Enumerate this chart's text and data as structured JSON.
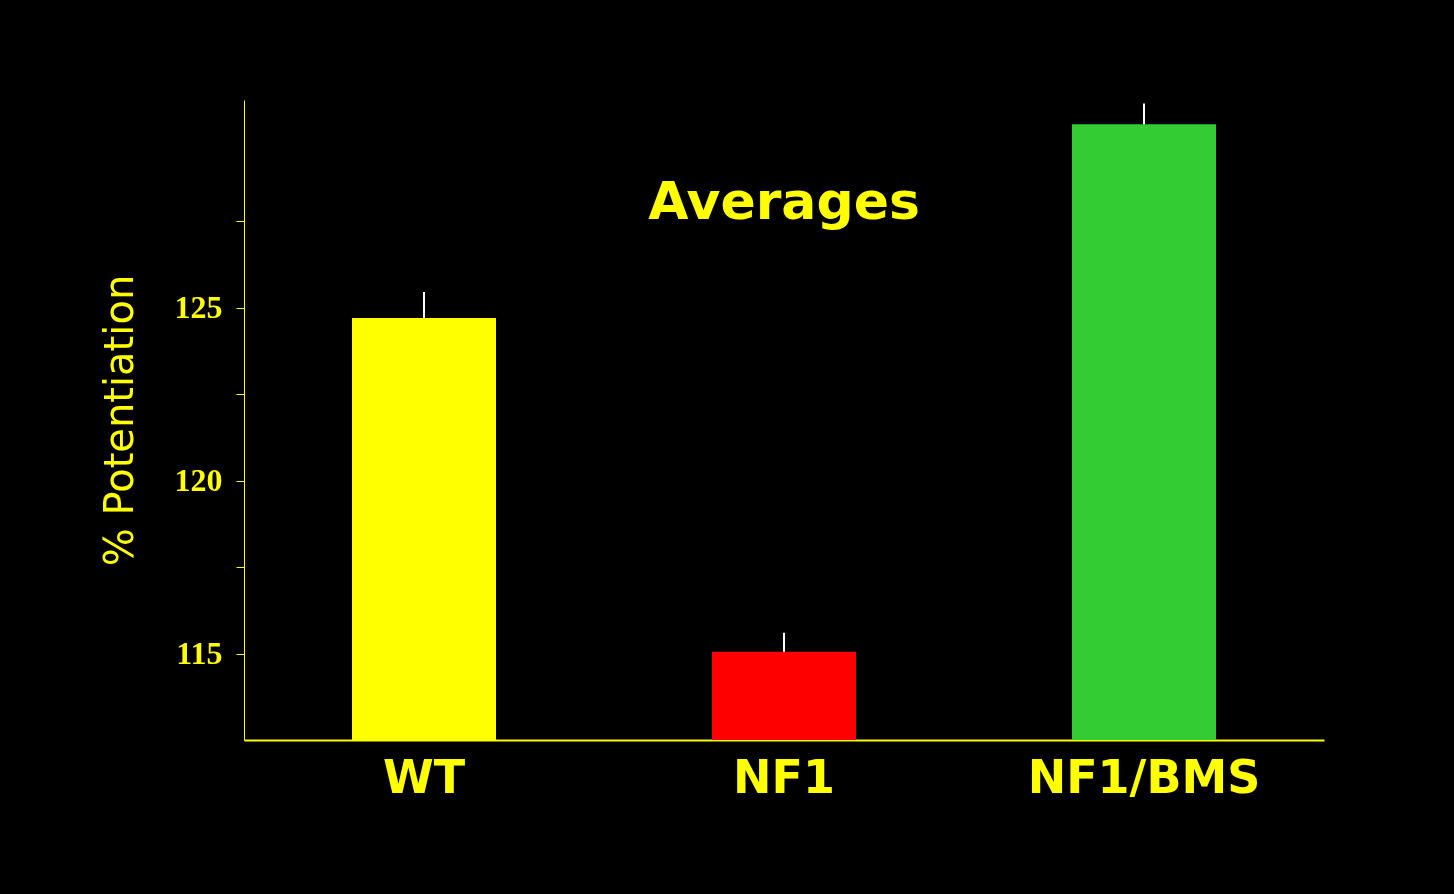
{
  "chart_data": {
    "type": "bar",
    "title": "Averages",
    "ylabel": "% Potentiation",
    "categories": [
      "WT",
      "NF1",
      "NF1/BMS"
    ],
    "values": [
      124.7,
      115.05,
      130.3
    ],
    "colors": [
      "#ffff00",
      "#ff0000",
      "#33cc33"
    ],
    "errors": [
      0.75,
      0.55,
      0.6
    ],
    "ylim": [
      112.5,
      131
    ],
    "yticks": [
      115,
      {
        "value": 117.5,
        "label": null
      },
      120,
      {
        "value": 122.5,
        "label": null
      },
      125,
      {
        "value": 127.5,
        "label": null
      }
    ],
    "grid": false,
    "legend": false
  }
}
